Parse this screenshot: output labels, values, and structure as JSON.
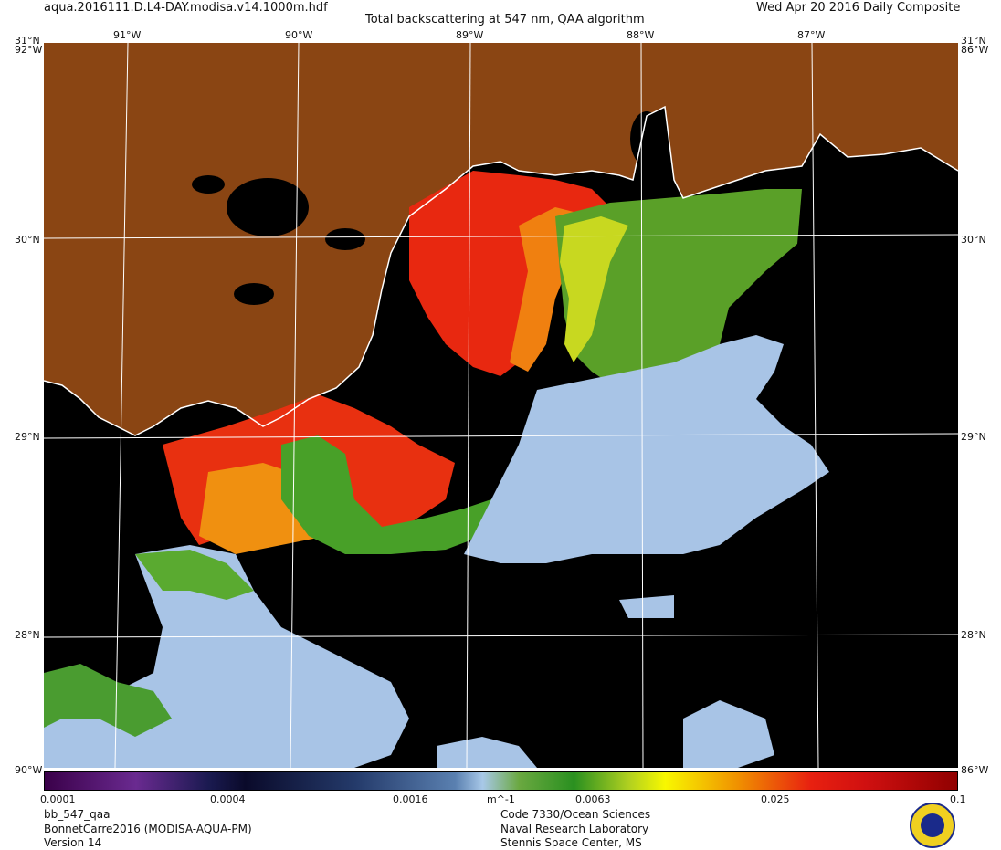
{
  "header": {
    "filename": "aqua.2016111.D.L4-DAY.modisa.v14.1000m.hdf",
    "title": "Total backscattering at 547 nm, QAA algorithm",
    "date": "Wed Apr 20 2016 Daily Composite"
  },
  "map": {
    "lon_labels_top": [
      "91°W",
      "90°W",
      "89°W",
      "88°W",
      "87°W"
    ],
    "lat_labels": [
      "31°N",
      "30°N",
      "29°N",
      "28°N"
    ],
    "corner_labels_left": [
      "92°W",
      "90°W"
    ],
    "corner_labels_right": [
      "86°W",
      "86°W"
    ],
    "colors": {
      "land": "#8a4513",
      "no_data": "#000000",
      "grid": "#ffffff",
      "coast": "#ffffff"
    }
  },
  "colorbar": {
    "ticks": [
      "0.0001",
      "0.0004",
      "0.0016",
      "0.0063",
      "0.025",
      "0.1"
    ],
    "unit": "m^-1"
  },
  "footer": {
    "left": [
      "bb_547_qaa",
      "BonnetCarre2016 (MODISA-AQUA-PM)",
      "Version 14"
    ],
    "right": [
      "Code 7330/Ocean Sciences",
      "Naval Research Laboratory",
      "Stennis Space Center, MS"
    ]
  }
}
